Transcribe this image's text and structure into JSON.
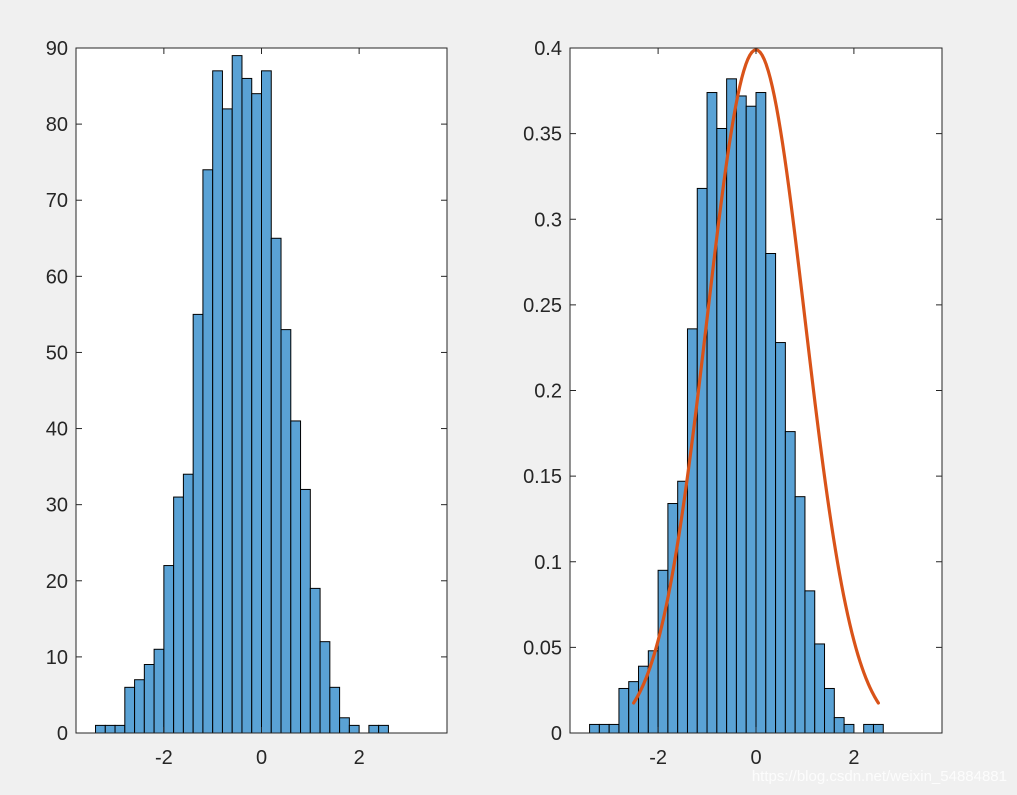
{
  "figure": {
    "background": "#f0f0f0",
    "bar_color": "#5aa2d5",
    "bar_edge": "#000000",
    "fit_color": "#d95319",
    "axes_color": "#262626",
    "watermark": "https://blog.csdn.net/weixin_54884881"
  },
  "chart_data": [
    {
      "type": "bar",
      "name": "left-histogram",
      "title": "",
      "xlabel": "",
      "ylabel": "",
      "xlim": [
        -3.8,
        3.8
      ],
      "ylim": [
        0,
        90
      ],
      "xticks": [
        -2,
        0,
        2
      ],
      "xtick_labels": [
        "-2",
        "0",
        "2"
      ],
      "yticks": [
        0,
        10,
        20,
        30,
        40,
        50,
        60,
        70,
        80,
        90
      ],
      "ytick_labels": [
        "0",
        "10",
        "20",
        "30",
        "40",
        "50",
        "60",
        "70",
        "80",
        "90"
      ],
      "bin_start": -3.4,
      "bin_width": 0.2,
      "values": [
        1,
        1,
        1,
        6,
        7,
        9,
        11,
        22,
        31,
        34,
        55,
        74,
        87,
        82,
        89,
        86,
        84,
        87,
        65,
        53,
        41,
        32,
        19,
        12,
        6,
        2,
        1,
        0,
        1,
        1
      ],
      "grid": false,
      "legend": "none"
    },
    {
      "type": "bar",
      "name": "right-histogram",
      "title": "",
      "xlabel": "",
      "ylabel": "",
      "xlim": [
        -3.8,
        3.8
      ],
      "ylim": [
        0,
        0.4
      ],
      "xticks": [
        -2,
        0,
        2
      ],
      "xtick_labels": [
        "-2",
        "0",
        "2"
      ],
      "yticks": [
        0,
        0.05,
        0.1,
        0.15,
        0.2,
        0.25,
        0.3,
        0.35,
        0.4
      ],
      "ytick_labels": [
        "0",
        "0.05",
        "0.1",
        "0.15",
        "0.2",
        "0.25",
        "0.3",
        "0.35",
        "0.4"
      ],
      "bin_start": -3.4,
      "bin_width": 0.2,
      "values": [
        0.005,
        0.005,
        0.005,
        0.026,
        0.03,
        0.039,
        0.048,
        0.095,
        0.134,
        0.147,
        0.236,
        0.318,
        0.374,
        0.353,
        0.382,
        0.372,
        0.366,
        0.374,
        0.28,
        0.228,
        0.176,
        0.138,
        0.083,
        0.052,
        0.026,
        0.009,
        0.005,
        0,
        0.005,
        0.005
      ],
      "fit_curve": {
        "type": "line",
        "x_range": [
          -2.5,
          2.5
        ],
        "mean": 0,
        "std": 1
      },
      "grid": false,
      "legend": "none"
    }
  ]
}
